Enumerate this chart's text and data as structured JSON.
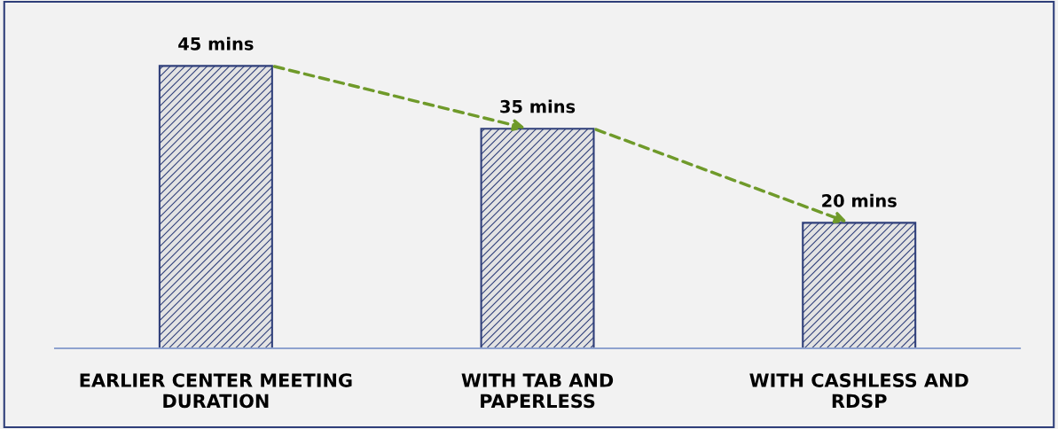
{
  "chart_data": {
    "type": "bar",
    "categories": [
      "EARLIER CENTER MEETING\nDURATION",
      "WITH TAB AND\nPAPERLESS",
      "WITH CASHLESS AND\nRDSP"
    ],
    "values": [
      45,
      35,
      20
    ],
    "value_labels": [
      "45 mins",
      "35 mins",
      "20 mins"
    ],
    "color": "#2f3f7a",
    "grid": false
  }
}
